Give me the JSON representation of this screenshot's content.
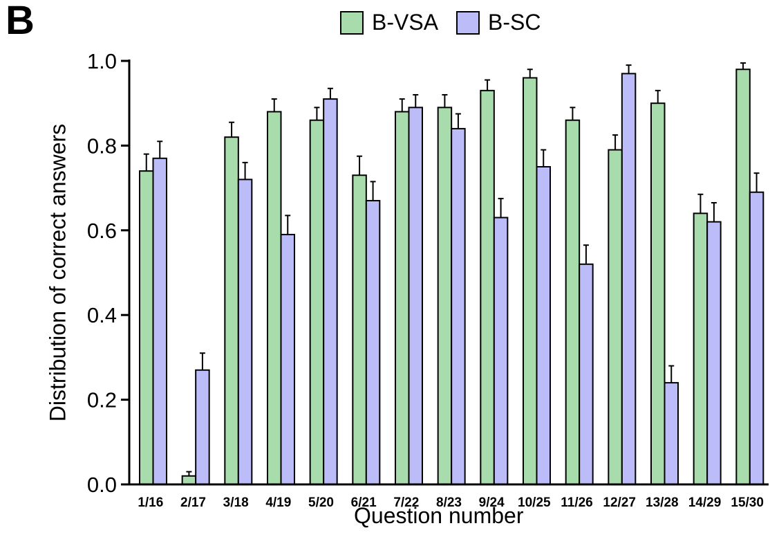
{
  "panel_label": "B",
  "colors": {
    "B-VSA": "#a8dcac",
    "B-SC": "#bcbcf8",
    "axis": "#000000"
  },
  "chart_data": {
    "type": "bar",
    "xlabel": "Question number",
    "ylabel": "Distribution of correct answers",
    "ylim": [
      0.0,
      1.0
    ],
    "yticks": [
      "0.0",
      "0.2",
      "0.4",
      "0.6",
      "0.8",
      "1.0"
    ],
    "legend_position": "top",
    "categories": [
      "1/16",
      "2/17",
      "3/18",
      "4/19",
      "5/20",
      "6/21",
      "7/22",
      "8/23",
      "9/24",
      "10/25",
      "11/26",
      "12/27",
      "13/28",
      "14/29",
      "15/30"
    ],
    "series": [
      {
        "name": "B-VSA",
        "values": [
          0.74,
          0.02,
          0.82,
          0.88,
          0.86,
          0.73,
          0.88,
          0.89,
          0.93,
          0.96,
          0.86,
          0.79,
          0.9,
          0.64,
          0.98
        ],
        "errors": [
          0.04,
          0.01,
          0.035,
          0.03,
          0.03,
          0.045,
          0.03,
          0.03,
          0.025,
          0.02,
          0.03,
          0.035,
          0.03,
          0.045,
          0.015
        ]
      },
      {
        "name": "B-SC",
        "values": [
          0.77,
          0.27,
          0.72,
          0.59,
          0.91,
          0.67,
          0.89,
          0.84,
          0.63,
          0.75,
          0.52,
          0.97,
          0.24,
          0.62,
          0.69
        ],
        "errors": [
          0.04,
          0.04,
          0.04,
          0.045,
          0.025,
          0.045,
          0.03,
          0.035,
          0.045,
          0.04,
          0.045,
          0.02,
          0.04,
          0.045,
          0.045
        ]
      }
    ]
  }
}
